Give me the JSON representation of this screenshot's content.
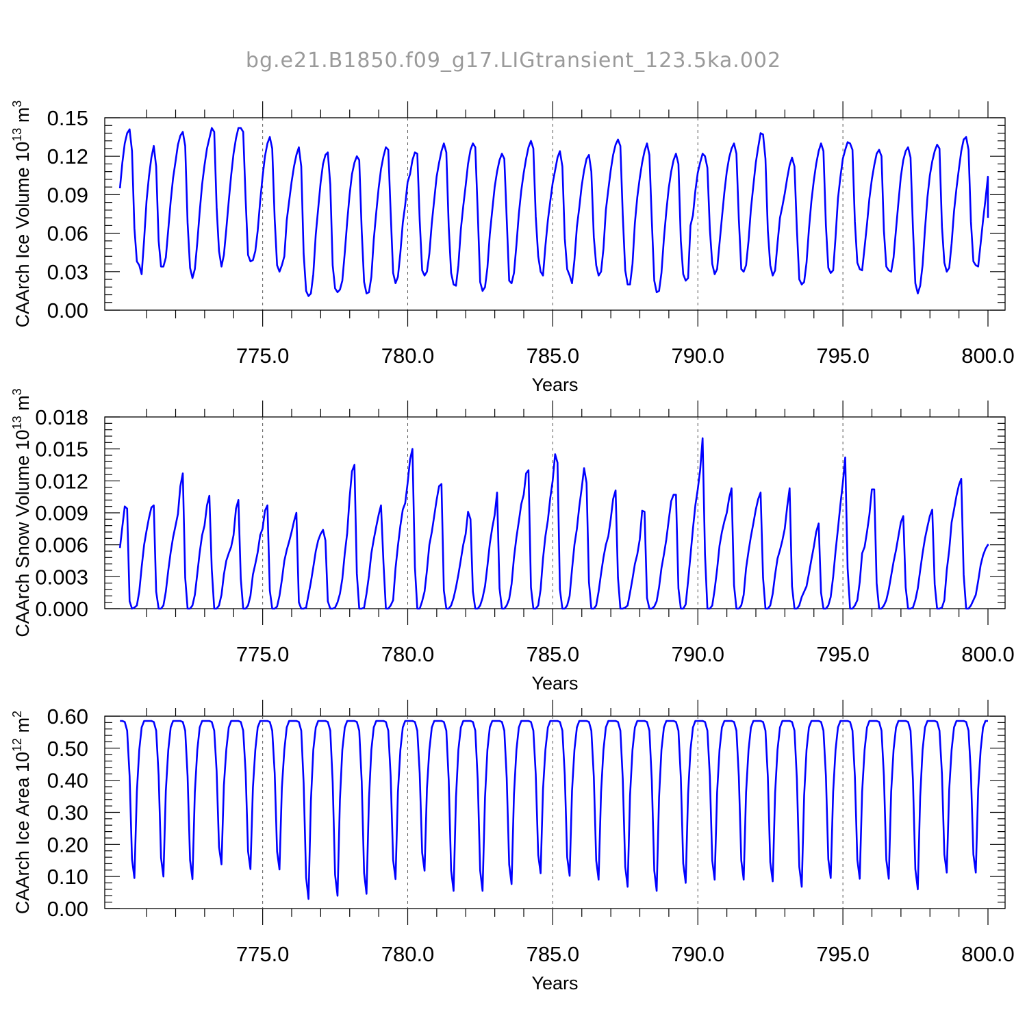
{
  "figure_title": "bg.e21.B1850.f09_g17.LIGtransient_123.5ka.002",
  "series_color": "#0000ff",
  "chart_data": [
    {
      "type": "line",
      "xlabel": "Years",
      "ylabel_parts": [
        "CAArch Ice Volume 10",
        "13",
        " m",
        "3"
      ],
      "xlim": [
        770.1,
        800.0
      ],
      "ylim": [
        0,
        0.15
      ],
      "xticks": [
        "775.0",
        "780.0",
        "785.0",
        "790.0",
        "795.0",
        "800.0"
      ],
      "yticks": [
        "0.00",
        "0.03",
        "0.06",
        "0.09",
        "0.12",
        "0.15"
      ],
      "grid": "vertical dashed at major x ticks",
      "years_start": [
        770.08,
        771.08,
        772.08,
        773.08,
        774.08,
        775.08,
        776.08,
        777.08,
        778.08,
        779.08,
        780.08,
        781.08,
        782.08,
        783.08,
        784.08,
        785.08,
        786.08,
        787.08,
        788.08,
        789.08,
        790.08,
        791.08,
        792.08,
        793.08,
        794.08,
        795.08,
        796.08,
        797.08,
        798.08,
        799.08,
        800.0
      ],
      "monthly_values": [
        [
          0.095,
          0.115,
          0.13,
          0.138,
          0.141,
          0.124,
          0.064,
          0.038,
          0.035,
          0.028,
          0.055,
          0.085
        ],
        [
          0.104,
          0.119,
          0.128,
          0.112,
          0.054,
          0.034,
          0.034,
          0.041,
          0.063,
          0.085,
          0.103,
          0.116
        ],
        [
          0.129,
          0.136,
          0.139,
          0.128,
          0.068,
          0.033,
          0.025,
          0.032,
          0.053,
          0.077,
          0.098,
          0.113
        ],
        [
          0.126,
          0.134,
          0.142,
          0.139,
          0.08,
          0.046,
          0.034,
          0.043,
          0.063,
          0.085,
          0.105,
          0.122
        ],
        [
          0.134,
          0.142,
          0.142,
          0.139,
          0.086,
          0.043,
          0.038,
          0.039,
          0.046,
          0.062,
          0.085,
          0.104
        ],
        [
          0.12,
          0.13,
          0.135,
          0.126,
          0.071,
          0.035,
          0.03,
          0.035,
          0.042,
          0.07,
          0.085,
          0.1
        ],
        [
          0.112,
          0.121,
          0.127,
          0.112,
          0.044,
          0.015,
          0.011,
          0.013,
          0.028,
          0.059,
          0.079,
          0.099
        ],
        [
          0.114,
          0.121,
          0.123,
          0.098,
          0.035,
          0.017,
          0.014,
          0.016,
          0.023,
          0.045,
          0.069,
          0.09
        ],
        [
          0.106,
          0.115,
          0.12,
          0.117,
          0.062,
          0.022,
          0.013,
          0.014,
          0.026,
          0.055,
          0.076,
          0.095
        ],
        [
          0.11,
          0.12,
          0.127,
          0.125,
          0.076,
          0.029,
          0.021,
          0.026,
          0.045,
          0.068,
          0.082,
          0.1
        ],
        [
          0.106,
          0.117,
          0.123,
          0.122,
          0.07,
          0.031,
          0.027,
          0.03,
          0.044,
          0.068,
          0.086,
          0.104
        ],
        [
          0.115,
          0.124,
          0.13,
          0.123,
          0.065,
          0.029,
          0.02,
          0.019,
          0.035,
          0.063,
          0.081,
          0.097
        ],
        [
          0.114,
          0.125,
          0.13,
          0.127,
          0.076,
          0.022,
          0.015,
          0.018,
          0.033,
          0.059,
          0.078,
          0.096
        ],
        [
          0.108,
          0.117,
          0.122,
          0.118,
          0.071,
          0.023,
          0.021,
          0.029,
          0.051,
          0.075,
          0.093,
          0.107
        ],
        [
          0.118,
          0.127,
          0.132,
          0.126,
          0.073,
          0.042,
          0.03,
          0.027,
          0.05,
          0.07,
          0.085,
          0.099
        ],
        [
          0.109,
          0.119,
          0.124,
          0.112,
          0.056,
          0.032,
          0.027,
          0.021,
          0.039,
          0.065,
          0.08,
          0.097
        ],
        [
          0.109,
          0.118,
          0.121,
          0.108,
          0.057,
          0.035,
          0.027,
          0.03,
          0.048,
          0.078,
          0.094,
          0.109
        ],
        [
          0.121,
          0.129,
          0.133,
          0.128,
          0.074,
          0.031,
          0.02,
          0.02,
          0.036,
          0.068,
          0.088,
          0.103
        ],
        [
          0.115,
          0.124,
          0.13,
          0.121,
          0.07,
          0.023,
          0.014,
          0.015,
          0.029,
          0.056,
          0.077,
          0.095
        ],
        [
          0.108,
          0.117,
          0.122,
          0.114,
          0.054,
          0.028,
          0.023,
          0.025,
          0.066,
          0.074,
          0.093,
          0.107
        ],
        [
          0.115,
          0.122,
          0.12,
          0.111,
          0.063,
          0.036,
          0.028,
          0.032,
          0.052,
          0.072,
          0.092,
          0.108
        ],
        [
          0.119,
          0.126,
          0.13,
          0.122,
          0.071,
          0.032,
          0.03,
          0.035,
          0.054,
          0.079,
          0.097,
          0.115
        ],
        [
          0.127,
          0.138,
          0.137,
          0.118,
          0.062,
          0.035,
          0.027,
          0.031,
          0.052,
          0.072,
          0.081,
          0.091
        ],
        [
          0.103,
          0.113,
          0.119,
          0.112,
          0.063,
          0.024,
          0.02,
          0.022,
          0.037,
          0.063,
          0.085,
          0.101
        ],
        [
          0.114,
          0.124,
          0.13,
          0.124,
          0.066,
          0.033,
          0.029,
          0.031,
          0.057,
          0.087,
          0.104,
          0.118
        ],
        [
          0.125,
          0.131,
          0.13,
          0.125,
          0.069,
          0.037,
          0.032,
          0.031,
          0.049,
          0.067,
          0.087,
          0.102
        ],
        [
          0.113,
          0.122,
          0.125,
          0.12,
          0.062,
          0.034,
          0.031,
          0.03,
          0.041,
          0.063,
          0.084,
          0.104
        ],
        [
          0.117,
          0.124,
          0.127,
          0.119,
          0.064,
          0.021,
          0.013,
          0.019,
          0.035,
          0.063,
          0.088,
          0.105
        ],
        [
          0.116,
          0.124,
          0.129,
          0.126,
          0.065,
          0.037,
          0.03,
          0.033,
          0.052,
          0.077,
          0.095,
          0.11
        ],
        [
          0.124,
          0.133,
          0.135,
          0.125,
          0.069,
          0.038,
          0.035,
          0.034,
          0.052,
          0.07,
          0.086,
          0.104
        ],
        [
          0.072
        ]
      ]
    },
    {
      "type": "line",
      "xlabel": "Years",
      "ylabel_parts": [
        "CAArch Snow Volume 10",
        "13",
        " m",
        "3"
      ],
      "xlim": [
        770.1,
        800.0
      ],
      "ylim": [
        0,
        0.018
      ],
      "xticks": [
        "775.0",
        "780.0",
        "785.0",
        "790.0",
        "795.0",
        "800.0"
      ],
      "yticks": [
        "0.000",
        "0.003",
        "0.006",
        "0.009",
        "0.012",
        "0.015",
        "0.018"
      ],
      "grid": "vertical dashed at major x ticks",
      "years_start": [
        770.08,
        771.08,
        772.08,
        773.08,
        774.08,
        775.08,
        776.08,
        777.08,
        778.08,
        779.08,
        780.08,
        781.08,
        782.08,
        783.08,
        784.08,
        785.08,
        786.08,
        787.08,
        788.08,
        789.08,
        790.08,
        791.08,
        792.08,
        793.08,
        794.08,
        795.08,
        796.08,
        797.08,
        798.08,
        799.08,
        800.0
      ],
      "monthly_values": [
        [
          0.0057,
          0.0077,
          0.0096,
          0.0094,
          0.0007,
          0.0,
          0.0001,
          0.0003,
          0.0016,
          0.0039,
          0.006,
          0.0073
        ],
        [
          0.0085,
          0.0095,
          0.0097,
          0.0016,
          0.0,
          0.0,
          0.0003,
          0.0016,
          0.0036,
          0.0053,
          0.0067,
          0.0078
        ],
        [
          0.0089,
          0.0115,
          0.0127,
          0.0029,
          0.0,
          0.0,
          0.0003,
          0.0013,
          0.0033,
          0.0053,
          0.0069,
          0.0078
        ],
        [
          0.0097,
          0.0106,
          0.0037,
          0.0,
          0.0,
          0.0003,
          0.0013,
          0.0032,
          0.0045,
          0.0052,
          0.0058,
          0.0069
        ],
        [
          0.0094,
          0.0102,
          0.0028,
          0.0,
          0.0,
          0.0003,
          0.0012,
          0.0032,
          0.0042,
          0.0053,
          0.0069,
          0.0075
        ],
        [
          0.0092,
          0.0097,
          0.0017,
          0.0,
          0.0,
          0.0002,
          0.0012,
          0.0027,
          0.0045,
          0.0055,
          0.0063,
          0.0072
        ],
        [
          0.0082,
          0.009,
          0.0006,
          0.0,
          0.0,
          0.0001,
          0.0013,
          0.0025,
          0.0039,
          0.0054,
          0.0064,
          0.007
        ],
        [
          0.0074,
          0.0064,
          0.0007,
          0.0,
          0.0,
          0.0001,
          0.0006,
          0.0014,
          0.0028,
          0.0052,
          0.0071,
          0.0104
        ],
        [
          0.0129,
          0.0135,
          0.0033,
          0.0,
          0.0,
          0.0001,
          0.0014,
          0.0031,
          0.0052,
          0.0065,
          0.0077,
          0.0088
        ],
        [
          0.0097,
          0.0043,
          0.0,
          0.0,
          0.0003,
          0.0008,
          0.0038,
          0.0059,
          0.0078,
          0.0093,
          0.0099,
          0.0118
        ],
        [
          0.014,
          0.015,
          0.0039,
          0.0,
          0.0,
          0.0007,
          0.0016,
          0.0036,
          0.006,
          0.0072,
          0.0087,
          0.0102
        ],
        [
          0.0115,
          0.0117,
          0.0017,
          0.0,
          0.0,
          0.0003,
          0.001,
          0.002,
          0.0032,
          0.0046,
          0.006,
          0.007
        ],
        [
          0.0091,
          0.0084,
          0.0016,
          0.0,
          0.0,
          0.0003,
          0.001,
          0.0021,
          0.004,
          0.0061,
          0.0076,
          0.0088
        ],
        [
          0.0109,
          0.0019,
          0.0,
          0.0,
          0.0003,
          0.0009,
          0.0023,
          0.0048,
          0.0067,
          0.0082,
          0.0098,
          0.0107
        ],
        [
          0.0127,
          0.013,
          0.002,
          0.0,
          0.0,
          0.0003,
          0.0018,
          0.0047,
          0.0068,
          0.0083,
          0.0104,
          0.012
        ],
        [
          0.0145,
          0.0137,
          0.0018,
          0.0,
          0.0,
          0.0003,
          0.0012,
          0.0037,
          0.006,
          0.0075,
          0.0096,
          0.0113
        ],
        [
          0.0132,
          0.0118,
          0.0025,
          0.0,
          0.0,
          0.0003,
          0.0016,
          0.0033,
          0.0048,
          0.006,
          0.0068,
          0.0084
        ],
        [
          0.0103,
          0.0111,
          0.0029,
          0.0,
          0.0,
          0.0001,
          0.0003,
          0.0015,
          0.0028,
          0.0042,
          0.0051,
          0.0065
        ],
        [
          0.0092,
          0.0091,
          0.001,
          0.0,
          0.0,
          0.0002,
          0.0007,
          0.002,
          0.0038,
          0.0051,
          0.0065,
          0.0083
        ],
        [
          0.0101,
          0.0107,
          0.0107,
          0.0019,
          0.0,
          0.0,
          0.0004,
          0.0026,
          0.005,
          0.0075,
          0.0097,
          0.0112
        ],
        [
          0.013,
          0.016,
          0.0051,
          0.0,
          0.0,
          0.0003,
          0.0018,
          0.0037,
          0.0059,
          0.0072,
          0.0082,
          0.009
        ],
        [
          0.0104,
          0.0113,
          0.0022,
          0.0,
          0.0,
          0.0003,
          0.0013,
          0.0038,
          0.0054,
          0.0068,
          0.008,
          0.0093
        ],
        [
          0.0103,
          0.0109,
          0.0029,
          0.0,
          0.0,
          0.0003,
          0.0014,
          0.0032,
          0.0047,
          0.0055,
          0.0064,
          0.0075
        ],
        [
          0.0096,
          0.0113,
          0.0021,
          0.0,
          0.0,
          0.0003,
          0.0011,
          0.0016,
          0.0021,
          0.0033,
          0.0046,
          0.0058
        ],
        [
          0.0072,
          0.008,
          0.0015,
          0.0,
          0.0,
          0.0003,
          0.0011,
          0.003,
          0.0054,
          0.0075,
          0.0098,
          0.0118
        ],
        [
          0.0142,
          0.0038,
          0.0,
          0.0,
          0.0003,
          0.0008,
          0.0025,
          0.0052,
          0.0058,
          0.0072,
          0.0088,
          0.0112
        ],
        [
          0.0112,
          0.0024,
          0.0,
          0.0,
          0.0003,
          0.0008,
          0.0018,
          0.0031,
          0.0044,
          0.0055,
          0.0068,
          0.0081
        ],
        [
          0.0087,
          0.002,
          0.0,
          0.0,
          0.0001,
          0.0008,
          0.0019,
          0.0036,
          0.0052,
          0.0066,
          0.0077,
          0.0087
        ],
        [
          0.0093,
          0.0023,
          0.0,
          0.0,
          0.0001,
          0.0008,
          0.0036,
          0.0055,
          0.0081,
          0.0093,
          0.0106,
          0.0116
        ],
        [
          0.0122,
          0.0032,
          0.0,
          0.0,
          0.0003,
          0.0008,
          0.0013,
          0.0026,
          0.0041,
          0.005,
          0.0056,
          0.006
        ],
        [
          0.0059
        ]
      ]
    },
    {
      "type": "line",
      "xlabel": "Years",
      "ylabel_parts": [
        "CAArch Ice Area 10",
        "12",
        " m",
        "2"
      ],
      "xlim": [
        770.1,
        800.0
      ],
      "ylim": [
        0,
        0.6
      ],
      "xticks": [
        "775.0",
        "780.0",
        "785.0",
        "790.0",
        "795.0",
        "800.0"
      ],
      "yticks": [
        "0.00",
        "0.10",
        "0.20",
        "0.30",
        "0.40",
        "0.50",
        "0.60"
      ],
      "grid": "vertical dashed at major x ticks",
      "years_start": [
        770.08,
        771.08,
        772.08,
        773.08,
        774.08,
        775.08,
        776.08,
        777.08,
        778.08,
        779.08,
        780.08,
        781.08,
        782.08,
        783.08,
        784.08,
        785.08,
        786.08,
        787.08,
        788.08,
        789.08,
        790.08,
        791.08,
        792.08,
        793.08,
        794.08,
        795.08,
        796.08,
        797.08,
        798.08,
        799.08,
        800.0
      ],
      "min_per_year": [
        0.095,
        0.1,
        0.092,
        0.138,
        0.123,
        0.122,
        0.03,
        0.04,
        0.046,
        0.092,
        0.118,
        0.055,
        0.055,
        0.076,
        0.11,
        0.102,
        0.09,
        0.068,
        0.055,
        0.08,
        0.09,
        0.09,
        0.085,
        0.068,
        0.095,
        0.093,
        0.093,
        0.06,
        0.112,
        0.112,
        0.585
      ],
      "max_value": 0.585
    }
  ]
}
